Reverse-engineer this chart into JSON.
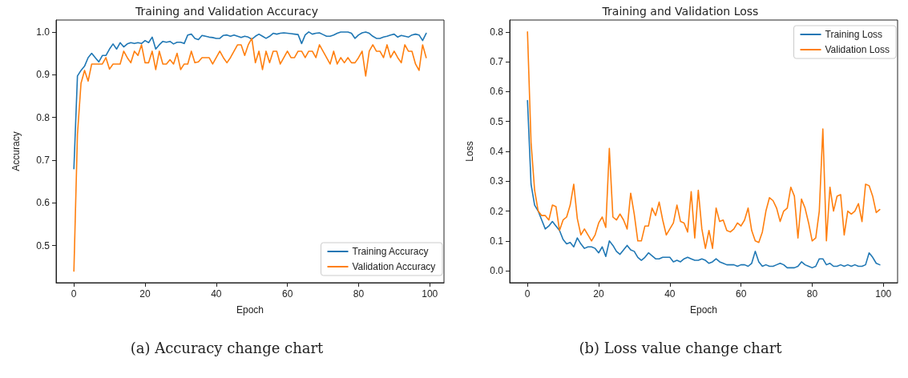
{
  "chart_data": [
    {
      "type": "line",
      "title": "Training and Validation Accuracy",
      "xlabel": "Epoch",
      "ylabel": "Accuracy",
      "x": [
        0,
        1,
        2,
        3,
        4,
        5,
        6,
        7,
        8,
        9,
        10,
        11,
        12,
        13,
        14,
        15,
        16,
        17,
        18,
        19,
        20,
        21,
        22,
        23,
        24,
        25,
        26,
        27,
        28,
        29,
        30,
        31,
        32,
        33,
        34,
        35,
        36,
        37,
        38,
        39,
        40,
        41,
        42,
        43,
        44,
        45,
        46,
        47,
        48,
        49,
        50,
        51,
        52,
        53,
        54,
        55,
        56,
        57,
        58,
        59,
        60,
        61,
        62,
        63,
        64,
        65,
        66,
        67,
        68,
        69,
        70,
        71,
        72,
        73,
        74,
        75,
        76,
        77,
        78,
        79,
        80,
        81,
        82,
        83,
        84,
        85,
        86,
        87,
        88,
        89,
        90,
        91,
        92,
        93,
        94,
        95,
        96,
        97,
        98,
        99
      ],
      "series": [
        {
          "name": "Training Accuracy",
          "color": "#1f77b4",
          "values": [
            0.68,
            0.897,
            0.91,
            0.92,
            0.94,
            0.95,
            0.94,
            0.93,
            0.945,
            0.945,
            0.96,
            0.972,
            0.96,
            0.975,
            0.965,
            0.972,
            0.975,
            0.973,
            0.975,
            0.973,
            0.98,
            0.975,
            0.988,
            0.96,
            0.97,
            0.978,
            0.976,
            0.978,
            0.972,
            0.976,
            0.976,
            0.973,
            0.993,
            0.995,
            0.985,
            0.982,
            0.992,
            0.99,
            0.988,
            0.987,
            0.985,
            0.985,
            0.992,
            0.993,
            0.99,
            0.993,
            0.99,
            0.987,
            0.99,
            0.988,
            0.983,
            0.99,
            0.995,
            0.99,
            0.985,
            0.99,
            0.997,
            0.995,
            0.997,
            0.998,
            0.997,
            0.996,
            0.995,
            0.994,
            0.973,
            0.993,
            1.0,
            0.995,
            0.997,
            0.998,
            0.994,
            0.99,
            0.99,
            0.993,
            0.997,
            1.0,
            1.0,
            1.0,
            0.997,
            0.985,
            0.993,
            0.998,
            1.0,
            0.997,
            0.99,
            0.985,
            0.985,
            0.988,
            0.99,
            0.993,
            0.995,
            0.988,
            0.992,
            0.99,
            0.988,
            0.993,
            0.995,
            0.993,
            0.98,
            0.997
          ]
        },
        {
          "name": "Validation Accuracy",
          "color": "#ff7f0e",
          "values": [
            0.44,
            0.76,
            0.88,
            0.91,
            0.885,
            0.925,
            0.925,
            0.925,
            0.925,
            0.94,
            0.913,
            0.925,
            0.925,
            0.925,
            0.955,
            0.94,
            0.928,
            0.955,
            0.945,
            0.97,
            0.928,
            0.928,
            0.955,
            0.912,
            0.955,
            0.925,
            0.925,
            0.935,
            0.925,
            0.95,
            0.912,
            0.925,
            0.925,
            0.955,
            0.928,
            0.93,
            0.94,
            0.94,
            0.94,
            0.925,
            0.94,
            0.955,
            0.94,
            0.928,
            0.94,
            0.955,
            0.97,
            0.97,
            0.945,
            0.97,
            0.985,
            0.928,
            0.955,
            0.912,
            0.955,
            0.928,
            0.955,
            0.955,
            0.925,
            0.94,
            0.955,
            0.94,
            0.94,
            0.955,
            0.955,
            0.94,
            0.955,
            0.955,
            0.94,
            0.97,
            0.955,
            0.94,
            0.925,
            0.955,
            0.925,
            0.94,
            0.928,
            0.94,
            0.928,
            0.928,
            0.94,
            0.955,
            0.897,
            0.955,
            0.97,
            0.955,
            0.955,
            0.94,
            0.97,
            0.94,
            0.955,
            0.94,
            0.928,
            0.97,
            0.955,
            0.955,
            0.925,
            0.91,
            0.97,
            0.94
          ]
        }
      ],
      "xlim": [
        -5,
        104
      ],
      "xticks": [
        0,
        20,
        40,
        60,
        80,
        100
      ],
      "ylim": [
        0.413,
        1.028
      ],
      "yticks": [
        0.5,
        0.6,
        0.7,
        0.8,
        0.9,
        {
          "value": 1,
          "label": "1.0"
        }
      ],
      "grid": false,
      "legend": "bottom right",
      "marker": "none",
      "line_style": "solid",
      "annotations": [
        "(a) Accuracy change chart"
      ]
    },
    {
      "type": "line",
      "title": "Training and Validation Loss",
      "xlabel": "Epoch",
      "ylabel": "Loss",
      "x": [
        0,
        1,
        2,
        3,
        4,
        5,
        6,
        7,
        8,
        9,
        10,
        11,
        12,
        13,
        14,
        15,
        16,
        17,
        18,
        19,
        20,
        21,
        22,
        23,
        24,
        25,
        26,
        27,
        28,
        29,
        30,
        31,
        32,
        33,
        34,
        35,
        36,
        37,
        38,
        39,
        40,
        41,
        42,
        43,
        44,
        45,
        46,
        47,
        48,
        49,
        50,
        51,
        52,
        53,
        54,
        55,
        56,
        57,
        58,
        59,
        60,
        61,
        62,
        63,
        64,
        65,
        66,
        67,
        68,
        69,
        70,
        71,
        72,
        73,
        74,
        75,
        76,
        77,
        78,
        79,
        80,
        81,
        82,
        83,
        84,
        85,
        86,
        87,
        88,
        89,
        90,
        91,
        92,
        93,
        94,
        95,
        96,
        97,
        98,
        99
      ],
      "series": [
        {
          "name": "Training Loss",
          "color": "#1f77b4",
          "values": [
            0.57,
            0.29,
            0.22,
            0.2,
            0.17,
            0.14,
            0.15,
            0.165,
            0.15,
            0.135,
            0.105,
            0.09,
            0.095,
            0.08,
            0.11,
            0.09,
            0.075,
            0.08,
            0.08,
            0.075,
            0.06,
            0.08,
            0.048,
            0.1,
            0.085,
            0.065,
            0.055,
            0.07,
            0.085,
            0.07,
            0.065,
            0.045,
            0.035,
            0.045,
            0.06,
            0.05,
            0.04,
            0.04,
            0.045,
            0.045,
            0.045,
            0.03,
            0.035,
            0.03,
            0.04,
            0.045,
            0.04,
            0.035,
            0.035,
            0.04,
            0.035,
            0.025,
            0.03,
            0.04,
            0.03,
            0.025,
            0.02,
            0.02,
            0.02,
            0.015,
            0.02,
            0.02,
            0.015,
            0.025,
            0.065,
            0.03,
            0.015,
            0.02,
            0.015,
            0.015,
            0.02,
            0.025,
            0.02,
            0.01,
            0.01,
            0.01,
            0.015,
            0.03,
            0.02,
            0.015,
            0.01,
            0.015,
            0.04,
            0.04,
            0.02,
            0.025,
            0.015,
            0.015,
            0.02,
            0.015,
            0.02,
            0.015,
            0.02,
            0.015,
            0.015,
            0.02,
            0.06,
            0.045,
            0.025,
            0.02
          ]
        },
        {
          "name": "Validation Loss",
          "color": "#ff7f0e",
          "values": [
            0.8,
            0.43,
            0.27,
            0.2,
            0.185,
            0.185,
            0.17,
            0.22,
            0.215,
            0.135,
            0.17,
            0.18,
            0.22,
            0.29,
            0.175,
            0.12,
            0.14,
            0.12,
            0.1,
            0.12,
            0.16,
            0.18,
            0.145,
            0.41,
            0.18,
            0.17,
            0.19,
            0.17,
            0.14,
            0.26,
            0.19,
            0.1,
            0.1,
            0.15,
            0.15,
            0.21,
            0.185,
            0.23,
            0.17,
            0.12,
            0.14,
            0.16,
            0.22,
            0.165,
            0.16,
            0.13,
            0.265,
            0.11,
            0.27,
            0.14,
            0.075,
            0.135,
            0.075,
            0.21,
            0.165,
            0.17,
            0.135,
            0.13,
            0.14,
            0.16,
            0.15,
            0.17,
            0.21,
            0.135,
            0.1,
            0.095,
            0.13,
            0.2,
            0.245,
            0.235,
            0.21,
            0.165,
            0.2,
            0.21,
            0.28,
            0.25,
            0.11,
            0.24,
            0.21,
            0.16,
            0.1,
            0.11,
            0.2,
            0.475,
            0.1,
            0.28,
            0.2,
            0.25,
            0.255,
            0.12,
            0.2,
            0.19,
            0.2,
            0.225,
            0.165,
            0.29,
            0.285,
            0.25,
            0.195,
            0.205
          ]
        }
      ],
      "xlim": [
        -5,
        104
      ],
      "xticks": [
        0,
        20,
        40,
        60,
        80,
        100
      ],
      "ylim": [
        -0.04,
        0.84
      ],
      "yticks": [
        {
          "value": 0,
          "label": "0.0"
        },
        0.1,
        0.2,
        0.3,
        0.4,
        0.5,
        0.6,
        0.7,
        0.8
      ],
      "grid": false,
      "legend": "top right",
      "marker": "none",
      "line_style": "solid",
      "annotations": [
        "(b) Loss value change chart"
      ]
    }
  ]
}
